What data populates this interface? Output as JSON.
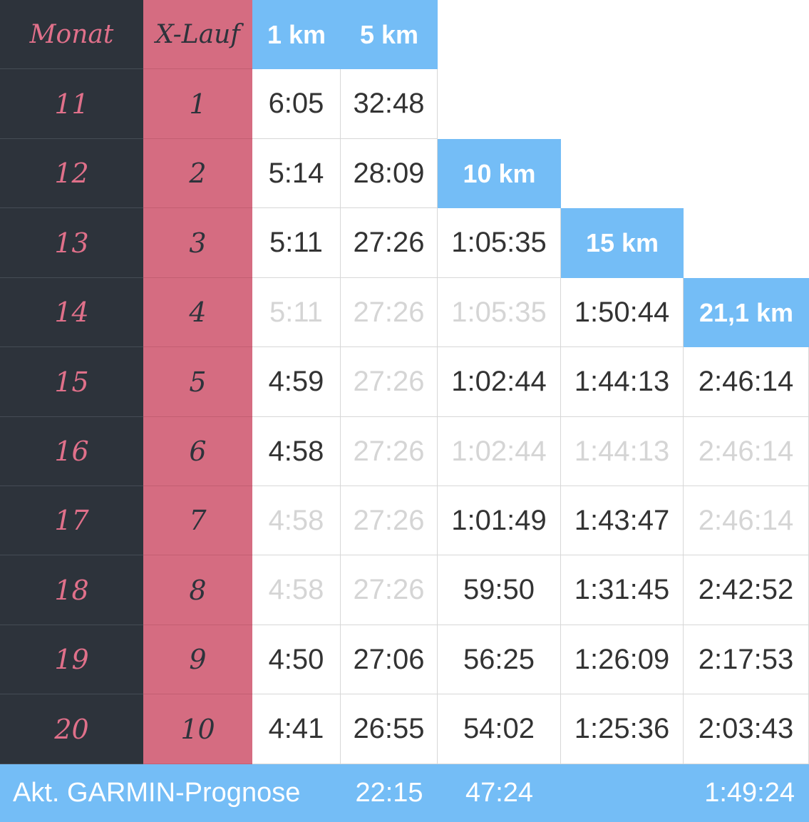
{
  "headers": {
    "monat": "Monat",
    "xlauf": "X-Lauf",
    "km1": "1 km",
    "km5": "5 km",
    "km10": "10 km",
    "km15": "15 km",
    "km21": "21,1 km"
  },
  "rows": [
    {
      "monat": "11",
      "xlauf": "1",
      "km1": "6:05",
      "km5": "32:48",
      "km10": "",
      "km15": "",
      "km21": "",
      "faded": []
    },
    {
      "monat": "12",
      "xlauf": "2",
      "km1": "5:14",
      "km5": "28:09",
      "km10": "",
      "km15": "",
      "km21": "",
      "faded": []
    },
    {
      "monat": "13",
      "xlauf": "3",
      "km1": "5:11",
      "km5": "27:26",
      "km10": "1:05:35",
      "km15": "",
      "km21": "",
      "faded": []
    },
    {
      "monat": "14",
      "xlauf": "4",
      "km1": "5:11",
      "km5": "27:26",
      "km10": "1:05:35",
      "km15": "1:50:44",
      "km21": "",
      "faded": [
        "km1",
        "km5",
        "km10"
      ]
    },
    {
      "monat": "15",
      "xlauf": "5",
      "km1": "4:59",
      "km5": "27:26",
      "km10": "1:02:44",
      "km15": "1:44:13",
      "km21": "2:46:14",
      "faded": [
        "km5"
      ]
    },
    {
      "monat": "16",
      "xlauf": "6",
      "km1": "4:58",
      "km5": "27:26",
      "km10": "1:02:44",
      "km15": "1:44:13",
      "km21": "2:46:14",
      "faded": [
        "km5",
        "km10",
        "km15",
        "km21"
      ]
    },
    {
      "monat": "17",
      "xlauf": "7",
      "km1": "4:58",
      "km5": "27:26",
      "km10": "1:01:49",
      "km15": "1:43:47",
      "km21": "2:46:14",
      "faded": [
        "km1",
        "km5",
        "km21"
      ]
    },
    {
      "monat": "18",
      "xlauf": "8",
      "km1": "4:58",
      "km5": "27:26",
      "km10": "59:50",
      "km15": "1:31:45",
      "km21": "2:42:52",
      "faded": [
        "km1",
        "km5"
      ]
    },
    {
      "monat": "19",
      "xlauf": "9",
      "km1": "4:50",
      "km5": "27:06",
      "km10": "56:25",
      "km15": "1:26:09",
      "km21": "2:17:53",
      "faded": []
    },
    {
      "monat": "20",
      "xlauf": "10",
      "km1": "4:41",
      "km5": "26:55",
      "km10": "54:02",
      "km15": "1:25:36",
      "km21": "2:03:43",
      "faded": []
    }
  ],
  "footer": {
    "label": "Akt. GARMIN-Prognose",
    "km5": "22:15",
    "km10": "47:24",
    "km21": "1:49:24"
  },
  "colors": {
    "dark": "#2d333b",
    "pink": "#d56c81",
    "pink_text": "#e0708a",
    "blue": "#74bdf6",
    "faded_text": "#d5d5d5"
  }
}
